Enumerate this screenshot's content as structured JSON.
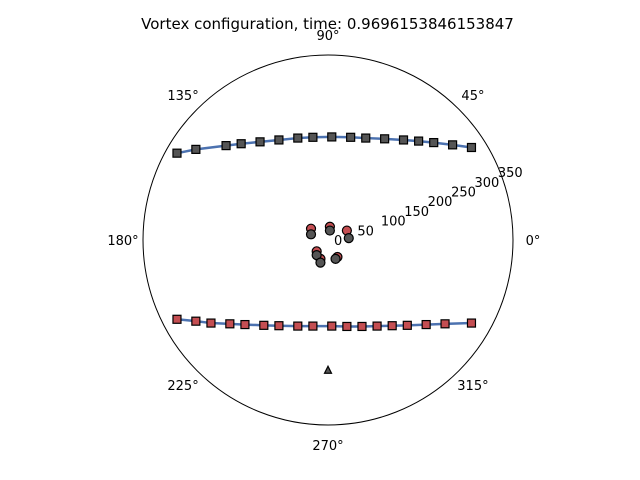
{
  "chart_data": {
    "type": "scatter",
    "projection": "polar",
    "title": "Vortex configuration, time: 0.9696153846153847",
    "rmax": 365,
    "angle_tick_labels": [
      "0°",
      "45°",
      "90°",
      "135°",
      "180°",
      "225°",
      "270°",
      "315°"
    ],
    "angle_ticks_deg": [
      0,
      45,
      90,
      135,
      180,
      225,
      270,
      315
    ],
    "radial_ticks": [
      0,
      50,
      100,
      150,
      200,
      250,
      300,
      350
    ],
    "radial_tick_labels": [
      "0",
      "50",
      "100",
      "150",
      "200",
      "250",
      "300",
      "350"
    ],
    "radial_label_angle_deg": 22.5,
    "grid": false,
    "colors": {
      "line": "#4c72b0",
      "red_marker": "#c44e52",
      "dark_marker": "#555555",
      "edge": "#000000"
    },
    "series": [
      {
        "marker": "square",
        "color": "dark",
        "line": true,
        "x": [
          -4.0,
          -3.5,
          -2.7,
          -2.3,
          -1.8,
          -1.3,
          -0.8,
          -0.4,
          0.1,
          0.6,
          1.0,
          1.5,
          2.0,
          2.4,
          2.8,
          3.3,
          3.8
        ],
        "y": [
          2.3,
          2.4,
          2.5,
          2.55,
          2.6,
          2.65,
          2.7,
          2.72,
          2.73,
          2.72,
          2.7,
          2.68,
          2.65,
          2.62,
          2.58,
          2.52,
          2.45
        ]
      },
      {
        "marker": "square",
        "color": "red",
        "line": true,
        "x": [
          -4.0,
          -3.5,
          -3.1,
          -2.6,
          -2.2,
          -1.7,
          -1.3,
          -0.8,
          -0.4,
          0.1,
          0.5,
          0.9,
          1.3,
          1.7,
          2.1,
          2.6,
          3.1,
          3.8
        ],
        "y": [
          -2.1,
          -2.15,
          -2.2,
          -2.22,
          -2.24,
          -2.26,
          -2.27,
          -2.28,
          -2.28,
          -2.28,
          -2.29,
          -2.29,
          -2.28,
          -2.27,
          -2.26,
          -2.24,
          -2.22,
          -2.2
        ]
      },
      {
        "marker": "circle",
        "color": "red",
        "line": false,
        "x": [
          -0.45,
          0.05,
          0.5,
          -0.3,
          -0.2,
          0.25
        ],
        "y": [
          0.3,
          0.35,
          0.25,
          -0.3,
          -0.5,
          -0.45
        ]
      },
      {
        "marker": "circle",
        "color": "dark",
        "line": false,
        "x": [
          -0.45,
          0.05,
          0.55,
          -0.3,
          -0.2,
          0.2
        ],
        "y": [
          0.15,
          0.25,
          0.05,
          -0.4,
          -0.6,
          -0.5
        ]
      },
      {
        "marker": "triangle",
        "color": "dark",
        "line": false,
        "x": [
          0.0
        ],
        "y": [
          -3.45
        ]
      }
    ],
    "data_radius_units": 4.9
  }
}
